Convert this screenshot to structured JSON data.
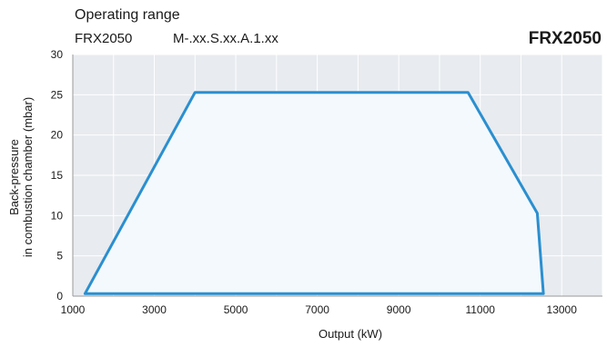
{
  "header": {
    "title": "Operating range",
    "model": "FRX2050",
    "code": "M-.xx.S.xx.A.1.xx",
    "brand": "FRX2050"
  },
  "colors": {
    "accent": "#2a8fd0",
    "plot_bg": "#e8ebef",
    "grid": "#ffffff",
    "area_fill": "#f3f9fc"
  },
  "chart_data": {
    "type": "area",
    "title": "Operating range",
    "xlabel": "Output (kW)",
    "ylabel_lines": [
      "Back-pressure",
      "in combustion chamber (mbar)"
    ],
    "xlim": [
      1000,
      14000
    ],
    "ylim": [
      0,
      30
    ],
    "xticks": [
      1000,
      3000,
      5000,
      7000,
      9000,
      11000,
      13000
    ],
    "yticks": [
      0,
      5,
      10,
      15,
      20,
      25,
      30
    ],
    "grid": true,
    "series": [
      {
        "x": [
          1300,
          4000,
          10700,
          12400,
          12550,
          1300
        ],
        "y": [
          0.3,
          25.3,
          25.3,
          10.3,
          0.3,
          0.3
        ]
      }
    ]
  }
}
